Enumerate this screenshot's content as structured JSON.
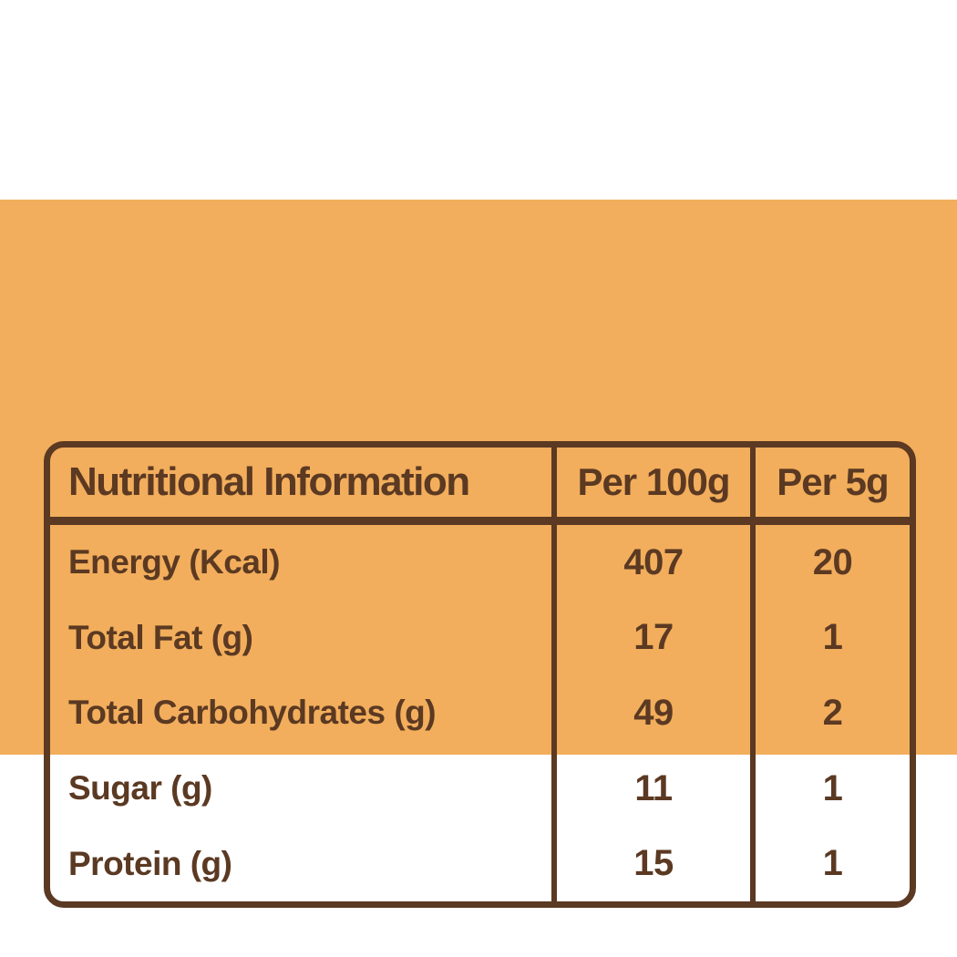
{
  "colors": {
    "page_bg": "#FFFFFF",
    "panel_bg": "#F2AE5C",
    "line_and_text": "#5B3922"
  },
  "table": {
    "header": {
      "title": "Nutritional Information",
      "col_per_100g": "Per 100g",
      "col_per_5g": "Per 5g"
    },
    "rows": [
      {
        "label": "Energy (Kcal)",
        "per100g": "407",
        "per5g": "20"
      },
      {
        "label": "Total Fat (g)",
        "per100g": "17",
        "per5g": "1"
      },
      {
        "label": "Total Carbohydrates (g)",
        "per100g": "49",
        "per5g": "2"
      },
      {
        "label": "Sugar (g)",
        "per100g": "11",
        "per5g": "1"
      },
      {
        "label": "Protein (g)",
        "per100g": "15",
        "per5g": "1"
      }
    ]
  }
}
